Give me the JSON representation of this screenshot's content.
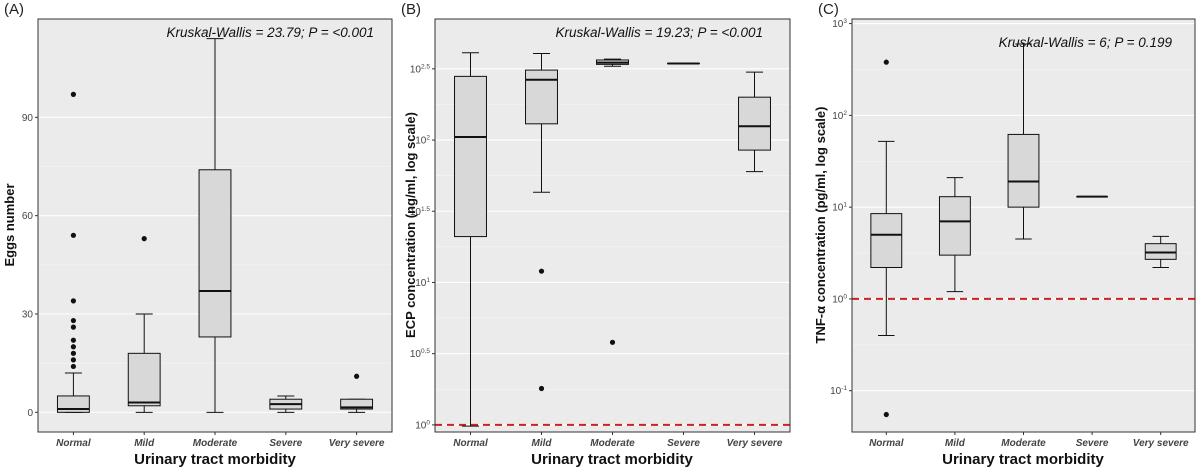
{
  "chart_data": [
    {
      "type": "box",
      "panel_label": "(A)",
      "annotation": "Kruskal-Wallis = 23.79; P = <0.001",
      "xlabel": "Urinary tract morbidity",
      "ylabel": "Eggs number",
      "scale": "linear",
      "ylim": [
        -6,
        120
      ],
      "yticks": [
        0,
        30,
        60,
        90
      ],
      "ytick_labels": [
        "0",
        "30",
        "60",
        "90"
      ],
      "grid": true,
      "categories": [
        "Normal",
        "Mild",
        "Moderate",
        "Severe",
        "Very severe"
      ],
      "boxes": [
        {
          "min": 0,
          "q1": 0,
          "median": 1,
          "q3": 5,
          "max": 12,
          "outliers": [
            14,
            16,
            18,
            20,
            22,
            26,
            28,
            34,
            54,
            97
          ]
        },
        {
          "min": 0,
          "q1": 2,
          "median": 3,
          "q3": 18,
          "max": 30,
          "outliers": [
            53
          ]
        },
        {
          "min": 0,
          "q1": 23,
          "median": 37,
          "q3": 74,
          "max": 114,
          "outliers": []
        },
        {
          "min": 0,
          "q1": 1,
          "median": 2.5,
          "q3": 4,
          "max": 5,
          "outliers": []
        },
        {
          "min": 0,
          "q1": 1,
          "median": 1.5,
          "q3": 4,
          "max": 4,
          "outliers": [
            11
          ]
        }
      ]
    },
    {
      "type": "box",
      "panel_label": "(B)",
      "annotation": "Kruskal-Wallis = 19.23; P = <0.001",
      "xlabel": "Urinary tract morbidity",
      "ylabel": "ECP concentration (ng/ml, log scale)",
      "scale": "log10",
      "ylim_log": [
        -0.05,
        2.85
      ],
      "yticks_log": [
        0,
        0.5,
        1,
        1.5,
        2,
        2.5
      ],
      "ytick_labels": [
        {
          "base": "10",
          "exp": "0"
        },
        {
          "base": "10",
          "exp": "0.5"
        },
        {
          "base": "10",
          "exp": "1"
        },
        {
          "base": "10",
          "exp": "1.5"
        },
        {
          "base": "10",
          "exp": "2"
        },
        {
          "base": "10",
          "exp": "2.5"
        }
      ],
      "grid": true,
      "reference_line": {
        "value_log": 0.0,
        "color": "#cc2222",
        "style": "dashed"
      },
      "categories": [
        "Normal",
        "Mild",
        "Moderate",
        "Severe",
        "Very severe"
      ],
      "boxes": [
        {
          "min": 0.98,
          "q1": 21,
          "median": 105,
          "q3": 280,
          "max": 410,
          "outliers": []
        },
        {
          "min": 43,
          "q1": 130,
          "median": 265,
          "q3": 310,
          "max": 405,
          "outliers": [
            12,
            1.8
          ]
        },
        {
          "min": 330,
          "q1": 340,
          "median": 350,
          "q3": 365,
          "max": 370,
          "outliers": [
            3.8
          ]
        },
        {
          "min": 345,
          "q1": 345,
          "median": 345,
          "q3": 345,
          "max": 345,
          "outliers": []
        },
        {
          "min": 60,
          "q1": 85,
          "median": 125,
          "q3": 200,
          "max": 300,
          "outliers": []
        }
      ]
    },
    {
      "type": "box",
      "panel_label": "(C)",
      "annotation": "Kruskal-Wallis = 6; P = 0.199",
      "xlabel": "Urinary tract morbidity",
      "ylabel": "TNF-α concentration (pg/ml, log scale)",
      "scale": "log10",
      "ylim_log": [
        -1.45,
        3.05
      ],
      "yticks_log": [
        -1,
        0,
        1,
        2,
        3
      ],
      "ytick_labels": [
        {
          "base": "10",
          "exp": "-1"
        },
        {
          "base": "10",
          "exp": "0"
        },
        {
          "base": "10",
          "exp": "1"
        },
        {
          "base": "10",
          "exp": "2"
        },
        {
          "base": "10",
          "exp": "3"
        }
      ],
      "grid": true,
      "reference_line": {
        "value_log": 0.0,
        "color": "#cc2222",
        "style": "dashed"
      },
      "categories": [
        "Normal",
        "Mild",
        "Moderate",
        "Severe",
        "Very severe"
      ],
      "boxes": [
        {
          "min": 0.4,
          "q1": 2.2,
          "median": 5,
          "q3": 8.5,
          "max": 52,
          "outliers": [
            0.055,
            380
          ]
        },
        {
          "min": 1.2,
          "q1": 3,
          "median": 7,
          "q3": 13,
          "max": 21,
          "outliers": []
        },
        {
          "min": 4.5,
          "q1": 10,
          "median": 19,
          "q3": 62,
          "max": 600,
          "outliers": []
        },
        {
          "min": 13,
          "q1": 13,
          "median": 13,
          "q3": 13,
          "max": 13,
          "outliers": []
        },
        {
          "min": 2.2,
          "q1": 2.7,
          "median": 3.2,
          "q3": 4,
          "max": 4.8,
          "outliers": []
        }
      ]
    }
  ]
}
